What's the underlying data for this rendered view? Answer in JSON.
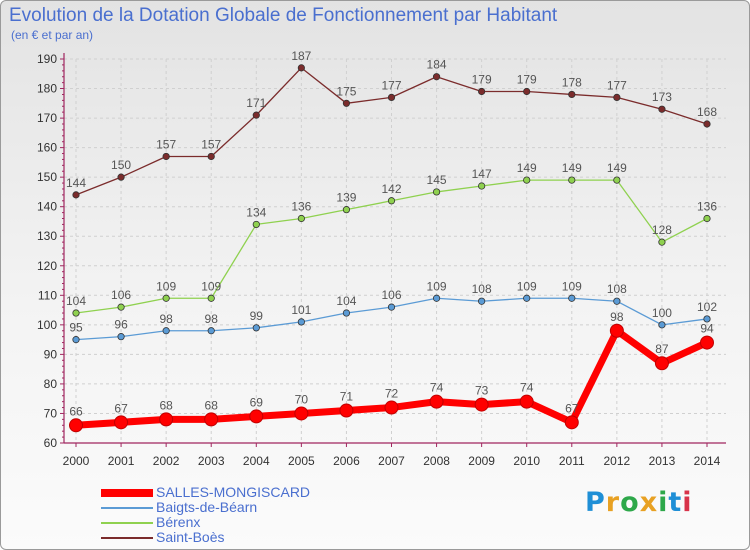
{
  "header": {
    "title": "Evolution de la Dotation Globale de Fonctionnement par Habitant",
    "subtitle": "(en € et par an)"
  },
  "logo": {
    "text": "Proxiti",
    "letter_colors": [
      "#1f8fd6",
      "#e8a123",
      "#2ea84a",
      "#e8a123",
      "#2ea84a",
      "#1f8fd6",
      "#d8334a"
    ]
  },
  "colors": {
    "axis": "#a0265f",
    "grid": "#d0d0d0",
    "value_label": "#555555",
    "tick_label": "#333333"
  },
  "chart_data": {
    "type": "line",
    "x": [
      2000,
      2001,
      2002,
      2003,
      2004,
      2005,
      2006,
      2007,
      2008,
      2009,
      2010,
      2011,
      2012,
      2013,
      2014
    ],
    "xlabel": "",
    "ylabel": "",
    "ylim": [
      60,
      190
    ],
    "yticks": [
      60,
      70,
      80,
      90,
      100,
      110,
      120,
      130,
      140,
      150,
      160,
      170,
      180,
      190
    ],
    "grid": true,
    "legend_position": "bottom-left",
    "series": [
      {
        "name": "SALLES-MONGISCARD",
        "color": "#ff0000",
        "emphasis": true,
        "values": [
          66,
          67,
          68,
          68,
          69,
          70,
          71,
          72,
          74,
          73,
          74,
          67,
          98,
          87,
          94
        ]
      },
      {
        "name": "Baigts-de-Béarn",
        "color": "#5b9bd5",
        "emphasis": false,
        "values": [
          95,
          96,
          98,
          98,
          99,
          101,
          104,
          106,
          109,
          108,
          109,
          109,
          108,
          100,
          102
        ]
      },
      {
        "name": "Bérenx",
        "color": "#8fd14f",
        "emphasis": false,
        "values": [
          104,
          106,
          109,
          109,
          134,
          136,
          139,
          142,
          145,
          147,
          149,
          149,
          149,
          128,
          136
        ]
      },
      {
        "name": "Saint-Boès",
        "color": "#7b2c2c",
        "emphasis": false,
        "values": [
          144,
          150,
          157,
          157,
          171,
          187,
          175,
          177,
          184,
          179,
          179,
          178,
          177,
          173,
          168
        ]
      }
    ]
  }
}
